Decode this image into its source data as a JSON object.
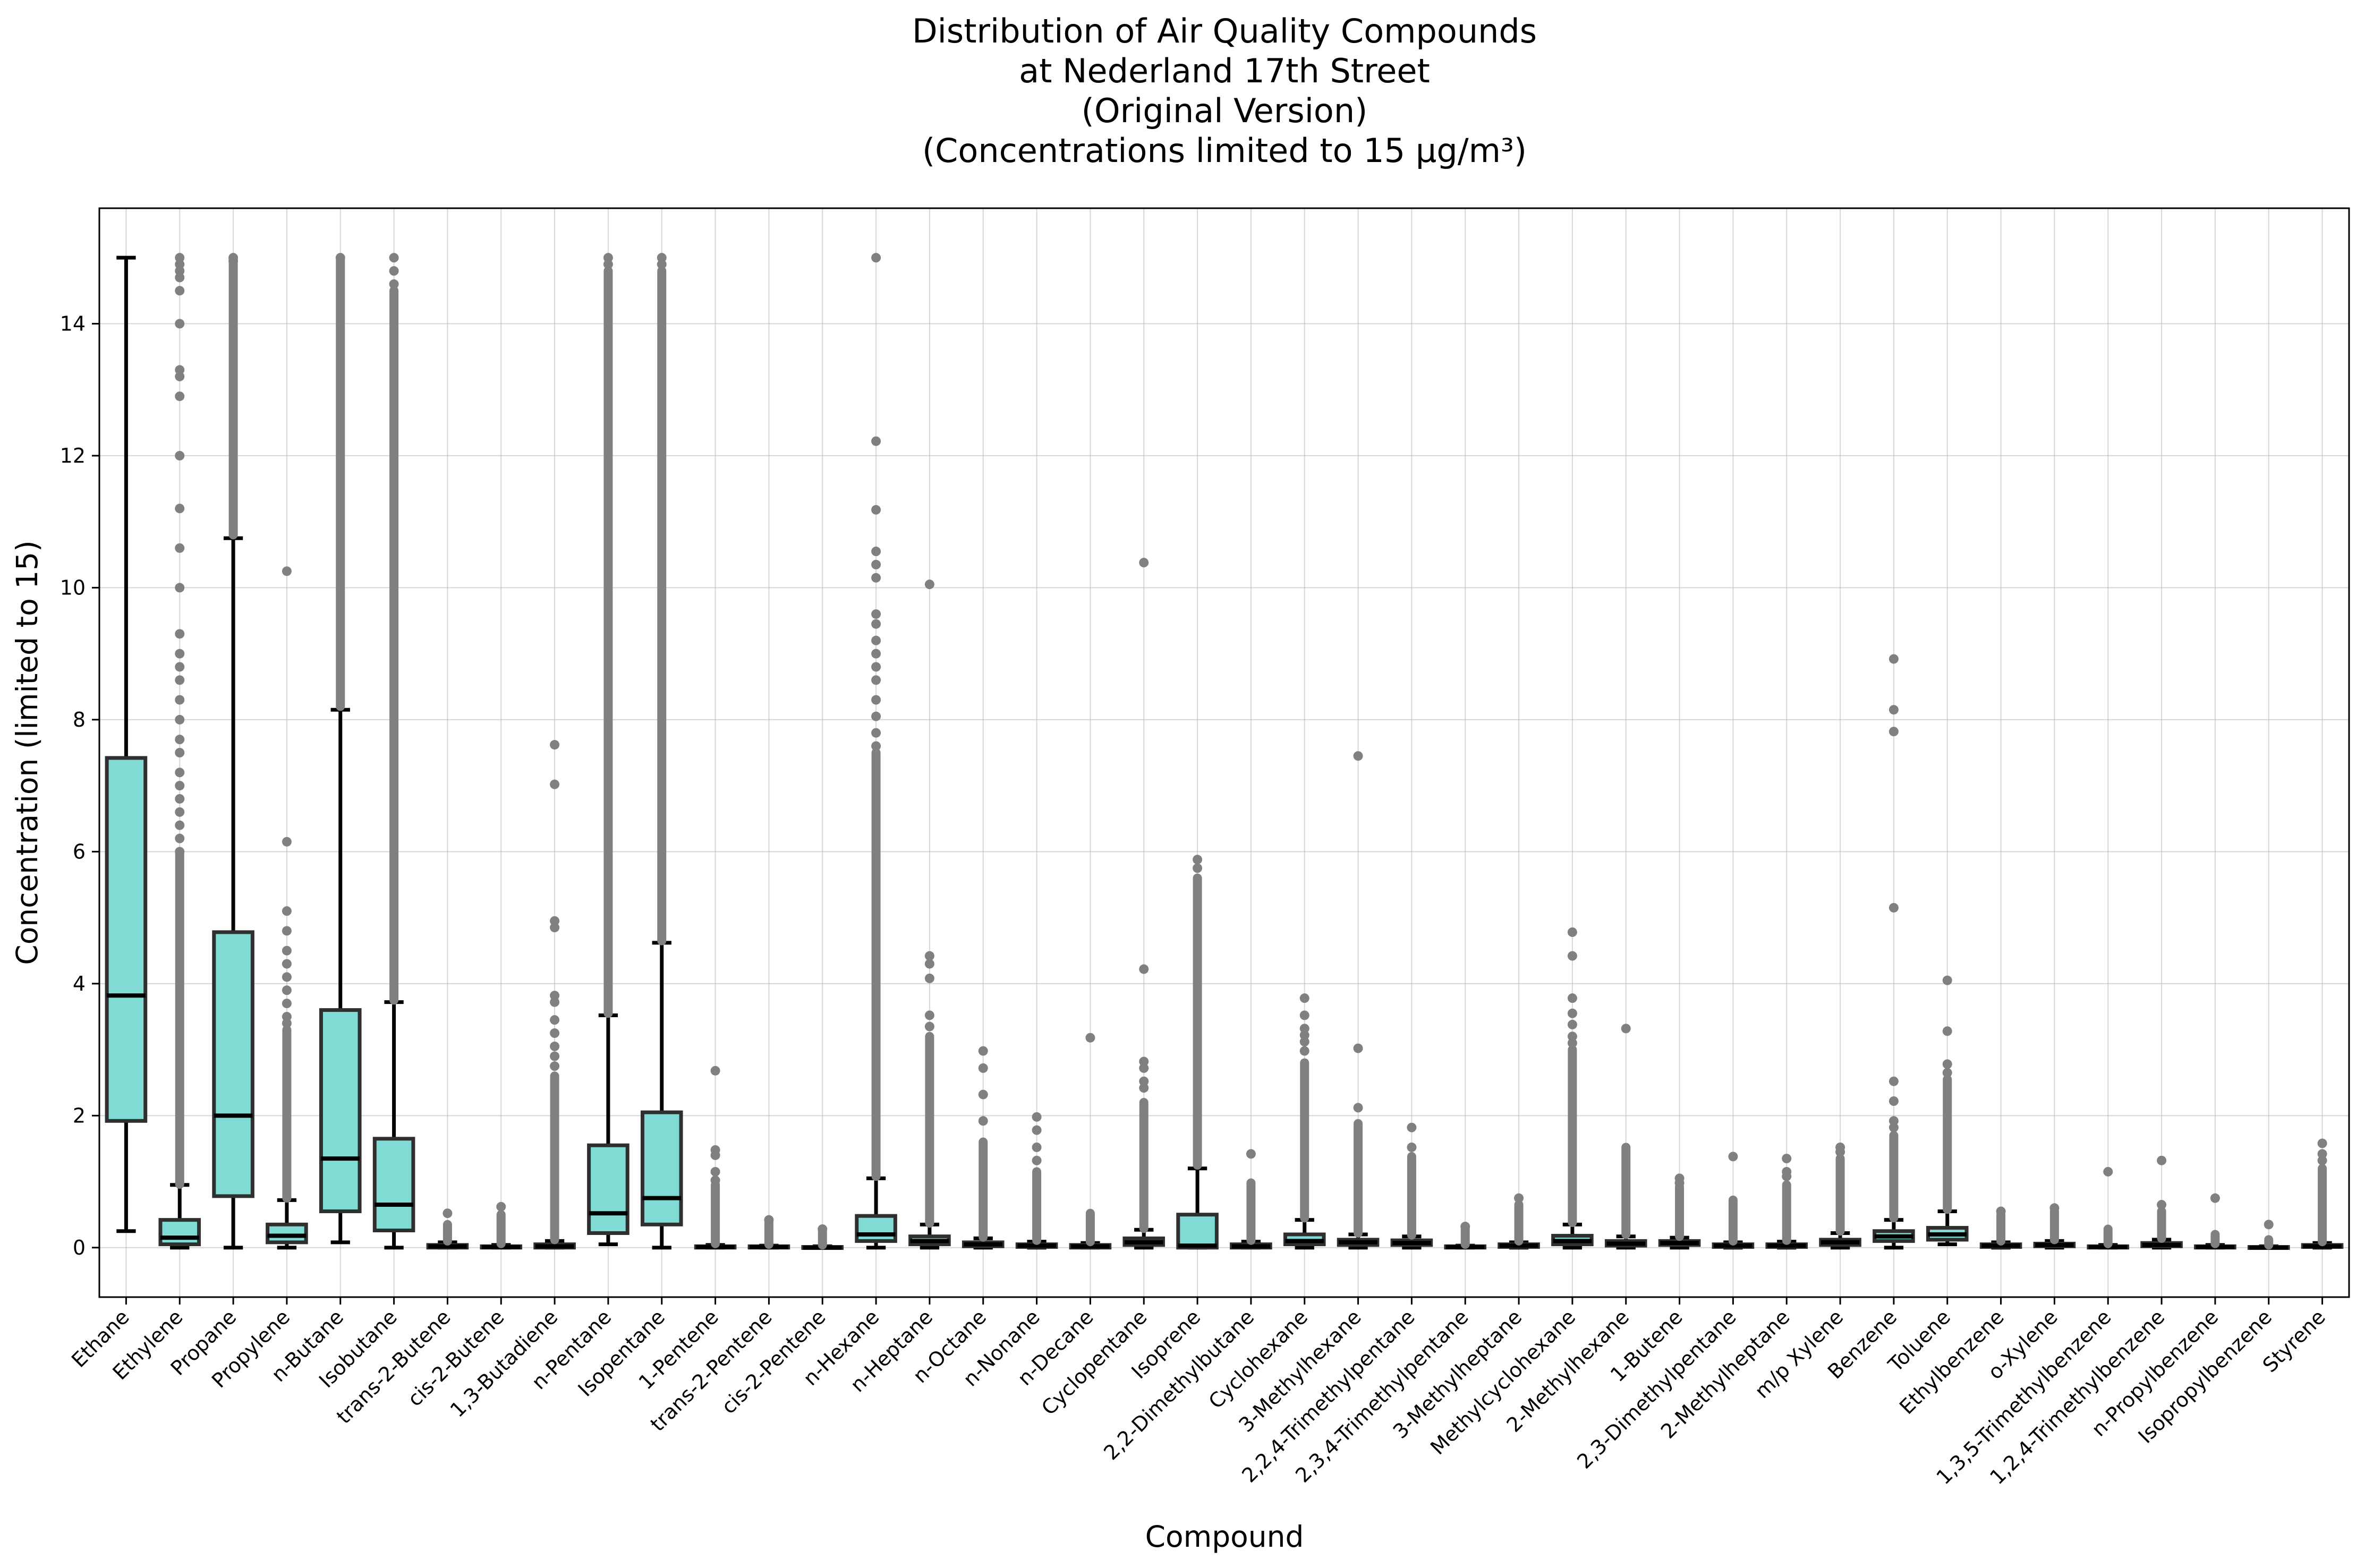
{
  "chart_data": {
    "type": "box",
    "title_lines": [
      "Distribution of Air Quality Compounds",
      "at Nederland 17th Street",
      "(Original Version)",
      "(Concentrations limited to 15 µg/m³)"
    ],
    "xlabel": "Compound",
    "ylabel": "Concentration (limited to 15)",
    "ylim": [
      -0.75,
      15.75
    ],
    "yticks": [
      0,
      2,
      4,
      6,
      8,
      10,
      12,
      14
    ],
    "grid": true,
    "colors": {
      "box": "#7fdbd4",
      "box_edge": "#2f2f2f",
      "flier": "#808080",
      "line": "#000000"
    },
    "categories": [
      "Ethane",
      "Ethylene",
      "Propane",
      "Propylene",
      "n-Butane",
      "Isobutane",
      "trans-2-Butene",
      "cis-2-Butene",
      "1,3-Butadiene",
      "n-Pentane",
      "Isopentane",
      "1-Pentene",
      "trans-2-Pentene",
      "cis-2-Pentene",
      "n-Hexane",
      "n-Heptane",
      "n-Octane",
      "n-Nonane",
      "n-Decane",
      "Cyclopentane",
      "Isoprene",
      "2,2-Dimethylbutane",
      "Cyclohexane",
      "3-Methylhexane",
      "2,2,4-Trimethylpentane",
      "2,3,4-Trimethylpentane",
      "3-Methylheptane",
      "Methylcyclohexane",
      "2-Methylhexane",
      "1-Butene",
      "2,3-Dimethylpentane",
      "2-Methylheptane",
      "m/p Xylene",
      "Benzene",
      "Toluene",
      "Ethylbenzene",
      "o-Xylene",
      "1,3,5-Trimethylbenzene",
      "1,2,4-Trimethylbenzene",
      "n-Propylbenzene",
      "Isopropylbenzene",
      "Styrene"
    ],
    "boxes": [
      {
        "whislo": 0.25,
        "q1": 1.92,
        "med": 3.82,
        "q3": 7.42,
        "whishi": 15.0,
        "fliers": []
      },
      {
        "whislo": 0.0,
        "q1": 0.05,
        "med": 0.15,
        "q3": 0.42,
        "whishi": 0.95,
        "fliers": [
          15.0,
          14.9,
          14.8,
          14.7,
          14.5,
          14.0,
          13.3,
          13.2,
          12.9,
          12.0,
          11.2,
          10.6,
          10.0,
          9.3,
          9.0,
          8.8,
          8.6,
          8.3,
          8.0,
          7.7,
          7.5,
          7.2,
          7.0,
          6.8,
          6.6,
          6.4,
          6.2,
          6.0
        ],
        "flier_band": [
          0.96,
          6.0
        ]
      },
      {
        "whislo": 0.0,
        "q1": 0.78,
        "med": 2.0,
        "q3": 4.78,
        "whishi": 10.75,
        "fliers": [
          15.0,
          14.95
        ],
        "flier_band": [
          10.8,
          15.0
        ]
      },
      {
        "whislo": 0.0,
        "q1": 0.08,
        "med": 0.18,
        "q3": 0.35,
        "whishi": 0.72,
        "fliers": [
          10.25,
          6.15,
          5.1,
          4.8,
          4.5,
          4.3,
          4.1,
          3.9,
          3.7,
          3.5,
          3.4
        ],
        "flier_band": [
          0.75,
          3.3
        ]
      },
      {
        "whislo": 0.08,
        "q1": 0.55,
        "med": 1.35,
        "q3": 3.6,
        "whishi": 8.15,
        "fliers": [
          15.0
        ],
        "flier_band": [
          8.2,
          15.0
        ]
      },
      {
        "whislo": 0.0,
        "q1": 0.26,
        "med": 0.65,
        "q3": 1.65,
        "whishi": 3.72,
        "fliers": [
          15.0,
          14.8,
          14.6
        ],
        "flier_band": [
          3.75,
          14.5
        ]
      },
      {
        "whislo": 0.0,
        "q1": 0.0,
        "med": 0.02,
        "q3": 0.04,
        "whishi": 0.08,
        "fliers": [
          0.52
        ],
        "flier_band": [
          0.1,
          0.35
        ]
      },
      {
        "whislo": 0.0,
        "q1": 0.0,
        "med": 0.01,
        "q3": 0.02,
        "whishi": 0.04,
        "fliers": [
          0.62
        ],
        "flier_band": [
          0.06,
          0.5
        ]
      },
      {
        "whislo": 0.0,
        "q1": 0.0,
        "med": 0.02,
        "q3": 0.05,
        "whishi": 0.1,
        "fliers": [
          7.62,
          7.02,
          4.95,
          4.85,
          3.82,
          3.72,
          3.45,
          3.25,
          3.05,
          2.9,
          2.75
        ],
        "flier_band": [
          0.12,
          2.6
        ]
      },
      {
        "whislo": 0.05,
        "q1": 0.22,
        "med": 0.52,
        "q3": 1.55,
        "whishi": 3.52,
        "fliers": [
          15.0,
          14.9
        ],
        "flier_band": [
          3.55,
          14.8
        ]
      },
      {
        "whislo": 0.0,
        "q1": 0.35,
        "med": 0.75,
        "q3": 2.05,
        "whishi": 4.62,
        "fliers": [
          15.0,
          14.9
        ],
        "flier_band": [
          4.65,
          14.8
        ]
      },
      {
        "whislo": 0.0,
        "q1": 0.0,
        "med": 0.01,
        "q3": 0.02,
        "whishi": 0.04,
        "fliers": [
          2.68,
          1.48,
          1.4,
          1.15,
          1.02
        ],
        "flier_band": [
          0.06,
          0.95
        ]
      },
      {
        "whislo": 0.0,
        "q1": 0.0,
        "med": 0.01,
        "q3": 0.02,
        "whishi": 0.03,
        "fliers": [
          0.42
        ],
        "flier_band": [
          0.05,
          0.38
        ]
      },
      {
        "whislo": 0.0,
        "q1": 0.0,
        "med": 0.0,
        "q3": 0.01,
        "whishi": 0.02,
        "fliers": [
          0.28
        ],
        "flier_band": [
          0.04,
          0.25
        ]
      },
      {
        "whislo": 0.0,
        "q1": 0.1,
        "med": 0.2,
        "q3": 0.48,
        "whishi": 1.05,
        "fliers": [
          15.0,
          12.22,
          11.18,
          10.55,
          10.35,
          10.15,
          9.6,
          9.45,
          9.2,
          9.0,
          8.8,
          8.6,
          8.3,
          8.05,
          7.8,
          7.6
        ],
        "flier_band": [
          1.08,
          7.5
        ]
      },
      {
        "whislo": 0.0,
        "q1": 0.05,
        "med": 0.1,
        "q3": 0.17,
        "whishi": 0.35,
        "fliers": [
          10.05,
          4.42,
          4.3,
          4.08,
          3.52,
          3.35
        ],
        "flier_band": [
          0.37,
          3.2
        ]
      },
      {
        "whislo": 0.0,
        "q1": 0.02,
        "med": 0.05,
        "q3": 0.08,
        "whishi": 0.14,
        "fliers": [
          2.98,
          2.72,
          2.32,
          1.92
        ],
        "flier_band": [
          0.16,
          1.6
        ]
      },
      {
        "whislo": 0.0,
        "q1": 0.01,
        "med": 0.03,
        "q3": 0.05,
        "whishi": 0.09,
        "fliers": [
          1.98,
          1.78,
          1.52,
          1.32
        ],
        "flier_band": [
          0.11,
          1.15
        ]
      },
      {
        "whislo": 0.0,
        "q1": 0.0,
        "med": 0.02,
        "q3": 0.04,
        "whishi": 0.07,
        "fliers": [
          3.18
        ],
        "flier_band": [
          0.09,
          0.52
        ]
      },
      {
        "whislo": 0.0,
        "q1": 0.04,
        "med": 0.08,
        "q3": 0.14,
        "whishi": 0.27,
        "fliers": [
          10.38,
          4.22,
          2.82,
          2.72,
          2.52,
          2.42
        ],
        "flier_band": [
          0.29,
          2.2
        ]
      },
      {
        "whislo": 0.0,
        "q1": 0.0,
        "med": 0.03,
        "q3": 0.5,
        "whishi": 1.2,
        "fliers": [
          5.88,
          5.75
        ],
        "flier_band": [
          1.25,
          5.6
        ]
      },
      {
        "whislo": 0.0,
        "q1": 0.0,
        "med": 0.02,
        "q3": 0.05,
        "whishi": 0.09,
        "fliers": [
          1.42
        ],
        "flier_band": [
          0.11,
          0.98
        ]
      },
      {
        "whislo": 0.0,
        "q1": 0.05,
        "med": 0.1,
        "q3": 0.2,
        "whishi": 0.42,
        "fliers": [
          3.78,
          3.52,
          3.32,
          3.22,
          3.12,
          2.98
        ],
        "flier_band": [
          0.45,
          2.8
        ]
      },
      {
        "whislo": 0.0,
        "q1": 0.04,
        "med": 0.08,
        "q3": 0.12,
        "whishi": 0.2,
        "fliers": [
          7.45,
          3.02,
          2.12
        ],
        "flier_band": [
          0.22,
          1.88
        ]
      },
      {
        "whislo": 0.0,
        "q1": 0.04,
        "med": 0.07,
        "q3": 0.11,
        "whishi": 0.17,
        "fliers": [
          1.82,
          1.52
        ],
        "flier_band": [
          0.19,
          1.38
        ]
      },
      {
        "whislo": 0.0,
        "q1": 0.0,
        "med": 0.01,
        "q3": 0.02,
        "whishi": 0.03,
        "fliers": [
          0.32
        ],
        "flier_band": [
          0.05,
          0.28
        ]
      },
      {
        "whislo": 0.0,
        "q1": 0.01,
        "med": 0.03,
        "q3": 0.05,
        "whishi": 0.08,
        "fliers": [
          0.75
        ],
        "flier_band": [
          0.1,
          0.65
        ]
      },
      {
        "whislo": 0.0,
        "q1": 0.05,
        "med": 0.1,
        "q3": 0.18,
        "whishi": 0.35,
        "fliers": [
          4.78,
          4.42,
          3.78,
          3.55,
          3.38,
          3.2,
          3.1
        ],
        "flier_band": [
          0.38,
          3.0
        ]
      },
      {
        "whislo": 0.0,
        "q1": 0.03,
        "med": 0.06,
        "q3": 0.1,
        "whishi": 0.17,
        "fliers": [
          3.32
        ],
        "flier_band": [
          0.2,
          1.52
        ]
      },
      {
        "whislo": 0.0,
        "q1": 0.04,
        "med": 0.07,
        "q3": 0.1,
        "whishi": 0.15,
        "fliers": [
          1.05,
          0.98
        ],
        "flier_band": [
          0.17,
          0.92
        ]
      },
      {
        "whislo": 0.0,
        "q1": 0.01,
        "med": 0.03,
        "q3": 0.05,
        "whishi": 0.08,
        "fliers": [
          1.38
        ],
        "flier_band": [
          0.1,
          0.72
        ]
      },
      {
        "whislo": 0.0,
        "q1": 0.01,
        "med": 0.03,
        "q3": 0.05,
        "whishi": 0.09,
        "fliers": [
          1.35,
          1.15,
          1.08
        ],
        "flier_band": [
          0.11,
          0.95
        ]
      },
      {
        "whislo": 0.0,
        "q1": 0.04,
        "med": 0.08,
        "q3": 0.12,
        "whishi": 0.22,
        "fliers": [
          1.52,
          1.45
        ],
        "flier_band": [
          0.25,
          1.35
        ]
      },
      {
        "whislo": 0.0,
        "q1": 0.1,
        "med": 0.17,
        "q3": 0.25,
        "whishi": 0.42,
        "fliers": [
          8.92,
          8.15,
          7.82,
          5.15,
          2.52,
          2.22,
          1.92,
          1.82
        ],
        "flier_band": [
          0.45,
          1.7
        ]
      },
      {
        "whislo": 0.05,
        "q1": 0.12,
        "med": 0.2,
        "q3": 0.3,
        "whishi": 0.55,
        "fliers": [
          4.05,
          3.28,
          2.78,
          2.65
        ],
        "flier_band": [
          0.58,
          2.55
        ]
      },
      {
        "whislo": 0.0,
        "q1": 0.01,
        "med": 0.03,
        "q3": 0.05,
        "whishi": 0.08,
        "fliers": [
          0.55
        ],
        "flier_band": [
          0.1,
          0.5
        ]
      },
      {
        "whislo": 0.0,
        "q1": 0.02,
        "med": 0.04,
        "q3": 0.06,
        "whishi": 0.1,
        "fliers": [
          0.6
        ],
        "flier_band": [
          0.12,
          0.55
        ]
      },
      {
        "whislo": 0.0,
        "q1": 0.0,
        "med": 0.01,
        "q3": 0.02,
        "whishi": 0.04,
        "fliers": [
          1.15
        ],
        "flier_band": [
          0.06,
          0.28
        ]
      },
      {
        "whislo": 0.0,
        "q1": 0.02,
        "med": 0.04,
        "q3": 0.07,
        "whishi": 0.12,
        "fliers": [
          1.32,
          0.65
        ],
        "flier_band": [
          0.14,
          0.55
        ]
      },
      {
        "whislo": 0.0,
        "q1": 0.0,
        "med": 0.01,
        "q3": 0.02,
        "whishi": 0.04,
        "fliers": [
          0.75
        ],
        "flier_band": [
          0.06,
          0.2
        ]
      },
      {
        "whislo": 0.0,
        "q1": 0.0,
        "med": 0.0,
        "q3": 0.01,
        "whishi": 0.02,
        "fliers": [
          0.35
        ],
        "flier_band": [
          0.04,
          0.12
        ]
      },
      {
        "whislo": 0.0,
        "q1": 0.01,
        "med": 0.02,
        "q3": 0.04,
        "whishi": 0.07,
        "fliers": [
          1.58,
          1.42,
          1.32
        ],
        "flier_band": [
          0.09,
          1.2
        ]
      }
    ]
  }
}
